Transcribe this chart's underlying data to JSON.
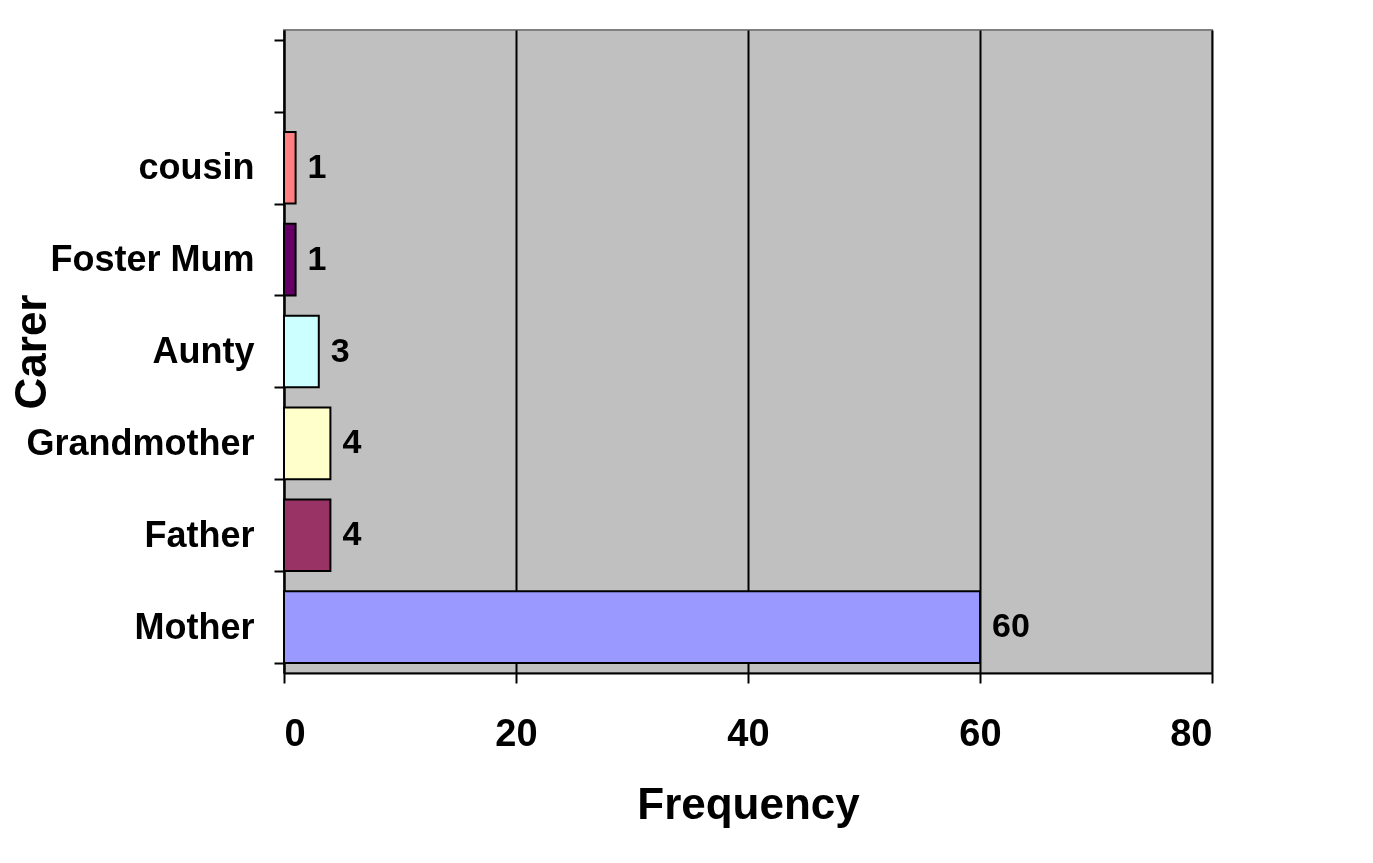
{
  "chart_data": {
    "type": "bar",
    "orientation": "horizontal",
    "xlabel": "Frequency",
    "ylabel": "Carer",
    "categories": [
      null,
      "cousin",
      "Foster Mum",
      "Aunty",
      "Grandmother",
      "Father",
      "Mother"
    ],
    "values": [
      null,
      1,
      1,
      3,
      4,
      4,
      60
    ],
    "colors": [
      "#c0c0c0",
      "#ff8080",
      "#660066",
      "#ccffff",
      "#ffffcc",
      "#993366",
      "#9999ff"
    ],
    "xlim": [
      0,
      80
    ],
    "xticks": [
      0,
      20,
      40,
      60,
      80
    ],
    "grid": "x",
    "data_labels": true
  }
}
